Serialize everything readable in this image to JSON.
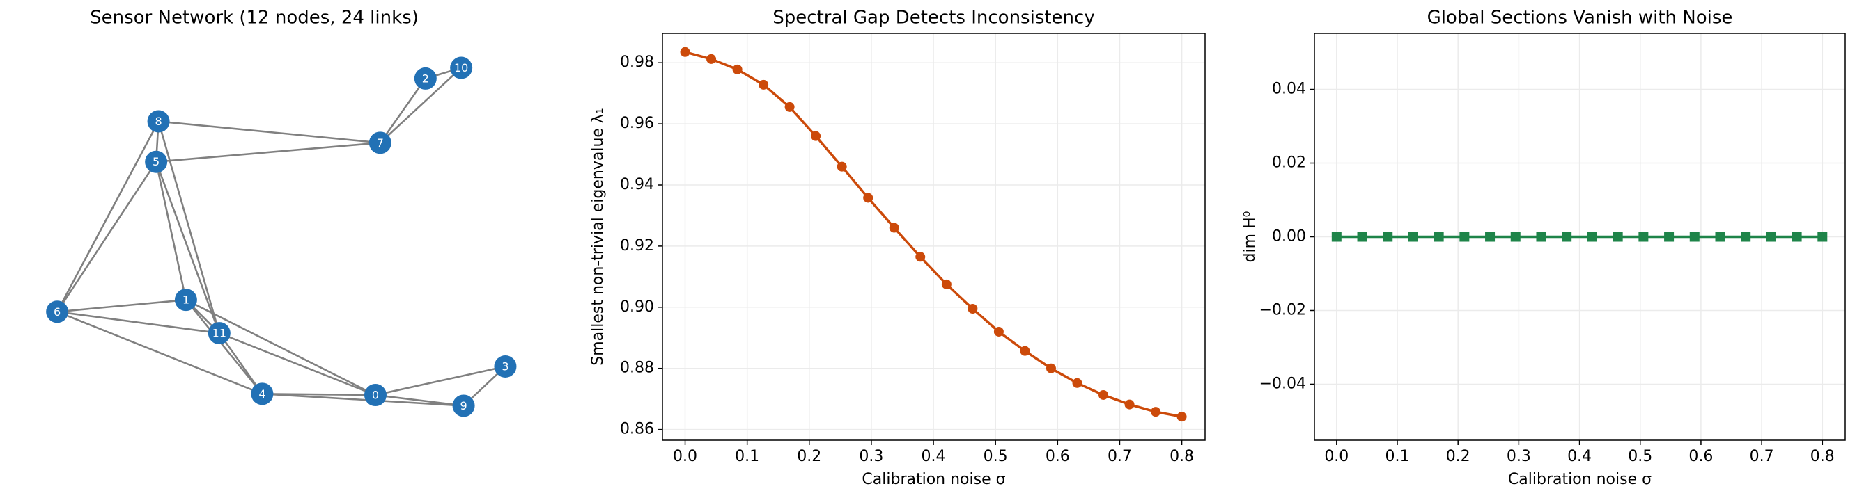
{
  "chart_data": [
    {
      "type": "network",
      "title": "Sensor Network (12 nodes, 24 links)",
      "nodes": [
        "0",
        "1",
        "2",
        "3",
        "4",
        "5",
        "6",
        "7",
        "8",
        "9",
        "10",
        "11"
      ],
      "node_color": "#2271b5",
      "edge_color": "#808080"
    },
    {
      "type": "line",
      "title": "Spectral Gap Detects Inconsistency",
      "xlabel": "Calibration noise σ",
      "ylabel": "Smallest non-trivial eigenvalue λ₁",
      "x": [
        0,
        0.0421,
        0.0842,
        0.1263,
        0.1684,
        0.2105,
        0.2526,
        0.2947,
        0.3368,
        0.3789,
        0.4211,
        0.4632,
        0.5053,
        0.5474,
        0.5895,
        0.6316,
        0.6737,
        0.7158,
        0.7579,
        0.8
      ],
      "values": [
        0.9835,
        0.9812,
        0.9778,
        0.9728,
        0.9655,
        0.956,
        0.946,
        0.9358,
        0.926,
        0.9165,
        0.9075,
        0.8995,
        0.892,
        0.8857,
        0.88,
        0.8752,
        0.8713,
        0.8682,
        0.8658,
        0.8642
      ],
      "color": "#cc4a0a",
      "marker": "circle",
      "xlim": [
        -0.0365,
        0.8375
      ],
      "ylim": [
        0.8565,
        0.9896
      ],
      "xticks": [
        {
          "value": 0,
          "label": "0.0"
        },
        0.1,
        0.2,
        0.3,
        0.4,
        0.5,
        0.6,
        0.7,
        0.8
      ],
      "yticks": [
        0.86,
        0.88,
        {
          "value": 0.9,
          "label": "0.90"
        },
        0.92,
        0.94,
        0.96,
        0.98
      ],
      "grid": true
    },
    {
      "type": "line",
      "title": "Global Sections Vanish with Noise",
      "xlabel": "Calibration noise σ",
      "ylabel": "dim H⁰",
      "x": [
        0,
        0.0421,
        0.0842,
        0.1263,
        0.1684,
        0.2105,
        0.2526,
        0.2947,
        0.3368,
        0.3789,
        0.4211,
        0.4632,
        0.5053,
        0.5474,
        0.5895,
        0.6316,
        0.6737,
        0.7158,
        0.7579,
        0.8
      ],
      "values": [
        0,
        0,
        0,
        0,
        0,
        0,
        0,
        0,
        0,
        0,
        0,
        0,
        0,
        0,
        0,
        0,
        0,
        0,
        0,
        0
      ],
      "color": "#1e8449",
      "marker": "square",
      "xlim": [
        -0.0365,
        0.8375
      ],
      "ylim": [
        -0.0552,
        0.0552
      ],
      "xticks": [
        {
          "value": 0,
          "label": "0.0"
        },
        0.1,
        0.2,
        0.3,
        0.4,
        0.5,
        0.6,
        0.7,
        0.8
      ],
      "yticks": [
        {
          "value": -0.04,
          "label": "−0.04"
        },
        {
          "value": -0.02,
          "label": "−0.02"
        },
        {
          "value": 0,
          "label": "0.00"
        },
        0.02,
        0.04
      ],
      "grid": true
    }
  ]
}
